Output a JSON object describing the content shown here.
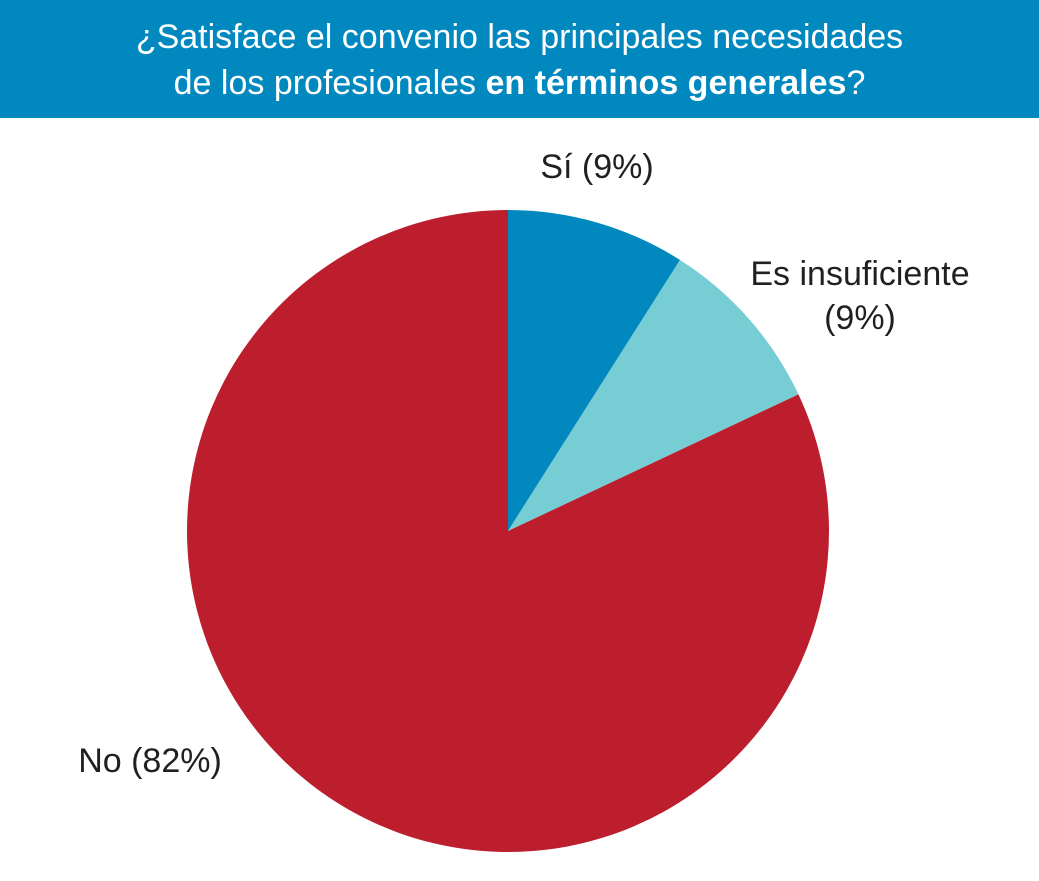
{
  "colors": {
    "title_bg": "#0088bf",
    "title_text": "#ffffff",
    "label_text": "#231f20"
  },
  "title": {
    "line1": "¿Satisface el convenio las principales necesidades",
    "line2_pre": "de los profesionales ",
    "line2_bold": "en términos generales",
    "line2_post": "?"
  },
  "chart_data": {
    "type": "pie",
    "title": "¿Satisface el convenio las principales necesidades de los profesionales en términos generales?",
    "start_angle_deg": 0,
    "direction": "clockwise",
    "legend": "none",
    "slices": [
      {
        "label": "Sí",
        "value": 9,
        "display": [
          "Sí (9%)"
        ],
        "color": "#0088bf"
      },
      {
        "label": "Es insuficiente",
        "value": 9,
        "display": [
          "Es insuficiente",
          "(9%)"
        ],
        "color": "#77cdd4"
      },
      {
        "label": "No",
        "value": 82,
        "display": [
          "No (82%)"
        ],
        "color": "#bc1e2d"
      }
    ]
  }
}
